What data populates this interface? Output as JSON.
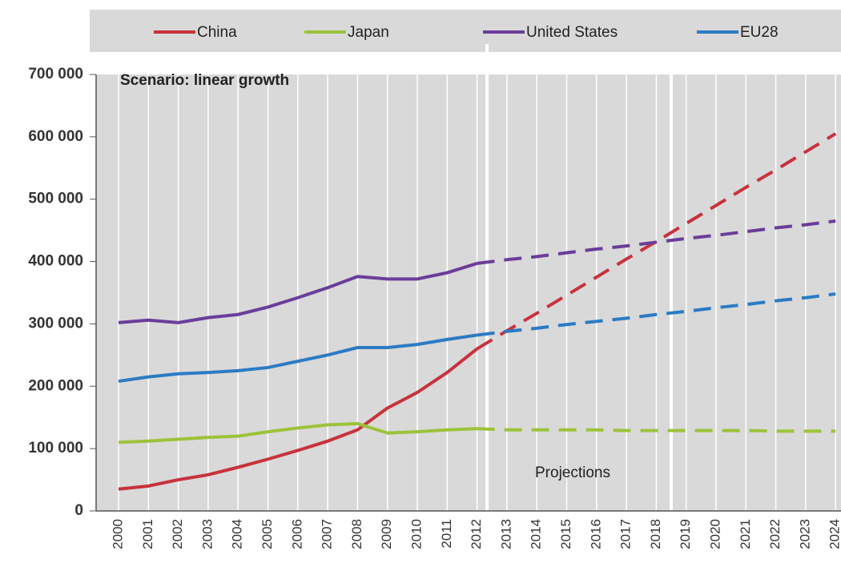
{
  "chart_data": {
    "type": "line",
    "annotations": {
      "scenario": "Scenario: linear growth",
      "projections": "Projections"
    },
    "projection_start": "2012",
    "categories": [
      "2000",
      "2001",
      "2002",
      "2003",
      "2004",
      "2005",
      "2006",
      "2007",
      "2008",
      "2009",
      "2010",
      "2011",
      "2012",
      "2013",
      "2014",
      "2015",
      "2016",
      "2017",
      "2018",
      "2019",
      "2020",
      "2021",
      "2022",
      "2023",
      "2024"
    ],
    "series": [
      {
        "name": "China",
        "color": "#c8323c",
        "values": [
          35000,
          40000,
          50000,
          58000,
          70000,
          83000,
          97000,
          112000,
          130000,
          165000,
          190000,
          222000,
          260000,
          289000,
          317000,
          346000,
          375000,
          404000,
          432000,
          461000,
          490000,
          519000,
          547000,
          576000,
          605000
        ]
      },
      {
        "name": "Japan",
        "color": "#9cc33a",
        "values": [
          110000,
          112000,
          115000,
          118000,
          120000,
          127000,
          133000,
          138000,
          140000,
          125000,
          127000,
          130000,
          132000,
          130000,
          130000,
          130000,
          130000,
          129000,
          129000,
          129000,
          129000,
          129000,
          128000,
          128000,
          128000
        ]
      },
      {
        "name": "United States",
        "color": "#6a3d9a",
        "values": [
          302000,
          306000,
          302000,
          310000,
          315000,
          327000,
          342000,
          358000,
          376000,
          372000,
          372000,
          382000,
          397000,
          403000,
          408000,
          414000,
          420000,
          425000,
          431000,
          437000,
          442000,
          448000,
          454000,
          459000,
          465000
        ]
      },
      {
        "name": "EU28",
        "color": "#2b7bc4",
        "values": [
          208000,
          215000,
          220000,
          222000,
          225000,
          230000,
          240000,
          250000,
          262000,
          262000,
          267000,
          275000,
          282000,
          288000,
          293000,
          299000,
          304000,
          309000,
          315000,
          320000,
          326000,
          331000,
          337000,
          342000,
          348000
        ]
      }
    ],
    "ylim": [
      0,
      700000
    ],
    "yticks": [
      0,
      {
        "value": 100000,
        "label": "100 000"
      },
      {
        "value": 200000,
        "label": "200 000"
      },
      {
        "value": 300000,
        "label": "300 000"
      },
      {
        "value": 400000,
        "label": "400 000"
      },
      {
        "value": 500000,
        "label": "500 000"
      },
      {
        "value": 600000,
        "label": "600 000"
      },
      {
        "value": 700000,
        "label": "700 000"
      }
    ],
    "grid": true
  }
}
